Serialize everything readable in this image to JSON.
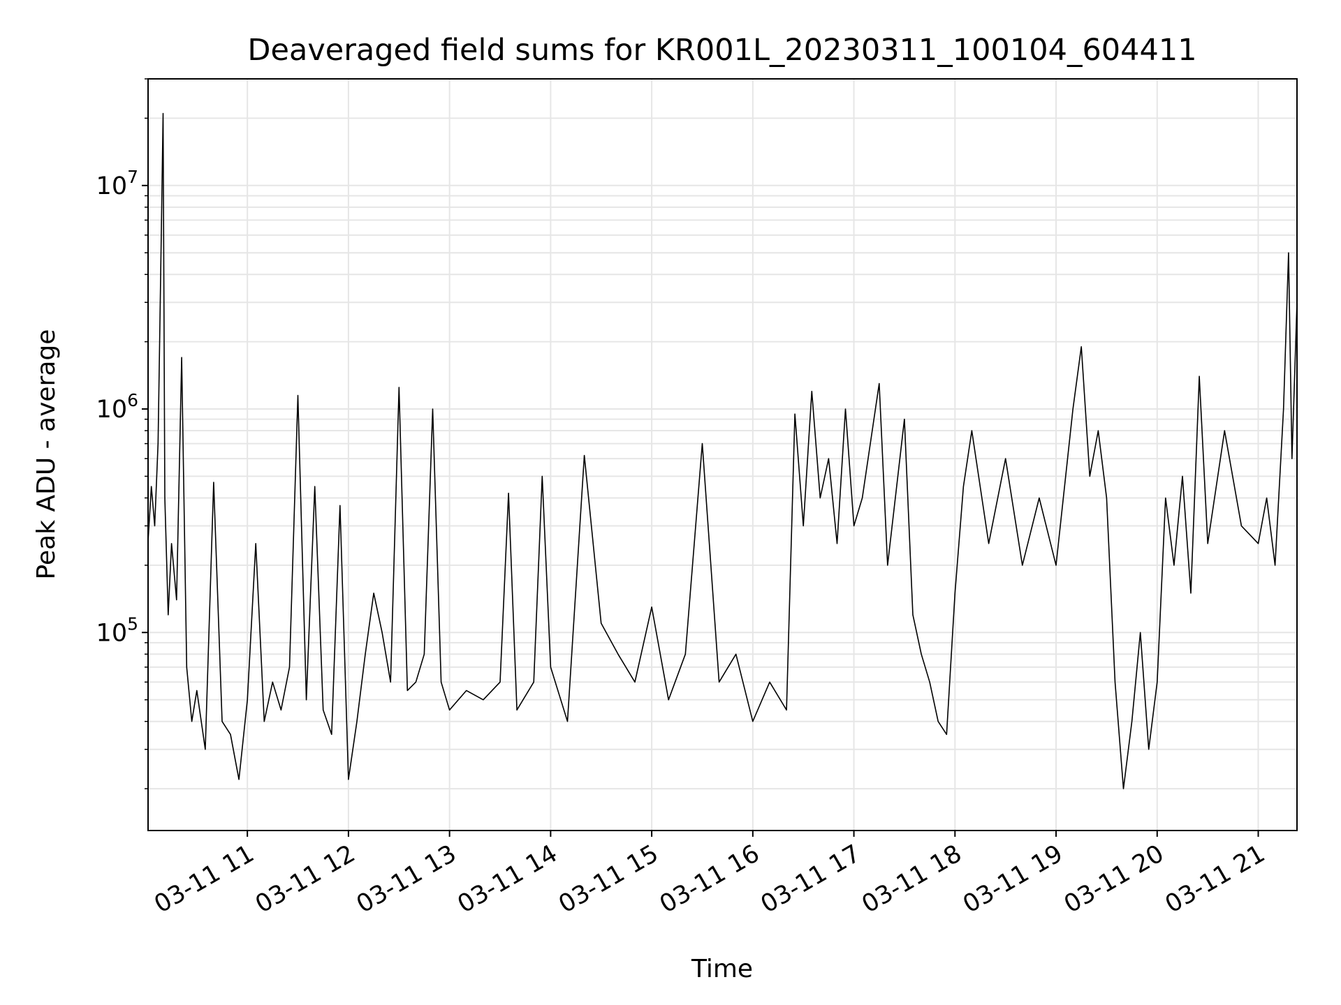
{
  "chart_data": {
    "type": "line",
    "title": "Deaveraged field sums for KR001L_20230311_100104_604411",
    "xlabel": "Time",
    "ylabel": "Peak ADU - average",
    "yscale": "log",
    "grid": {
      "major": true,
      "minor_y": true
    },
    "legend": "none",
    "line_color": "#000000",
    "grid_color": "#e6e6e6",
    "xlim": [
      "2023-03-11 10:01:04",
      "2023-03-11 21:23:00"
    ],
    "ylim": [
      13000,
      30000000
    ],
    "x_ticks": [
      {
        "value": "2023-03-11 11:00",
        "label": "03-11 11"
      },
      {
        "value": "2023-03-11 12:00",
        "label": "03-11 12"
      },
      {
        "value": "2023-03-11 13:00",
        "label": "03-11 13"
      },
      {
        "value": "2023-03-11 14:00",
        "label": "03-11 14"
      },
      {
        "value": "2023-03-11 15:00",
        "label": "03-11 15"
      },
      {
        "value": "2023-03-11 16:00",
        "label": "03-11 16"
      },
      {
        "value": "2023-03-11 17:00",
        "label": "03-11 17"
      },
      {
        "value": "2023-03-11 18:00",
        "label": "03-11 18"
      },
      {
        "value": "2023-03-11 19:00",
        "label": "03-11 19"
      },
      {
        "value": "2023-03-11 20:00",
        "label": "03-11 20"
      },
      {
        "value": "2023-03-11 21:00",
        "label": "03-11 21"
      }
    ],
    "y_ticks": [
      {
        "value": 100000,
        "base": "10",
        "exp": "5"
      },
      {
        "value": 1000000,
        "base": "10",
        "exp": "6"
      },
      {
        "value": 10000000,
        "base": "10",
        "exp": "7"
      }
    ],
    "series": [
      {
        "points": [
          [
            "2023-03-11 10:01",
            250000
          ],
          [
            "2023-03-11 10:03",
            450000
          ],
          [
            "2023-03-11 10:05",
            300000
          ],
          [
            "2023-03-11 10:07",
            700000
          ],
          [
            "2023-03-11 10:09",
            6500000
          ],
          [
            "2023-03-11 10:10",
            21000000
          ],
          [
            "2023-03-11 10:11",
            400000
          ],
          [
            "2023-03-11 10:13",
            120000
          ],
          [
            "2023-03-11 10:15",
            250000
          ],
          [
            "2023-03-11 10:18",
            140000
          ],
          [
            "2023-03-11 10:21",
            1700000
          ],
          [
            "2023-03-11 10:24",
            70000
          ],
          [
            "2023-03-11 10:27",
            40000
          ],
          [
            "2023-03-11 10:30",
            55000
          ],
          [
            "2023-03-11 10:35",
            30000
          ],
          [
            "2023-03-11 10:40",
            470000
          ],
          [
            "2023-03-11 10:45",
            40000
          ],
          [
            "2023-03-11 10:50",
            35000
          ],
          [
            "2023-03-11 10:55",
            22000
          ],
          [
            "2023-03-11 11:00",
            50000
          ],
          [
            "2023-03-11 11:05",
            250000
          ],
          [
            "2023-03-11 11:10",
            40000
          ],
          [
            "2023-03-11 11:15",
            60000
          ],
          [
            "2023-03-11 11:20",
            45000
          ],
          [
            "2023-03-11 11:25",
            70000
          ],
          [
            "2023-03-11 11:30",
            1150000
          ],
          [
            "2023-03-11 11:35",
            50000
          ],
          [
            "2023-03-11 11:40",
            450000
          ],
          [
            "2023-03-11 11:45",
            45000
          ],
          [
            "2023-03-11 11:50",
            35000
          ],
          [
            "2023-03-11 11:55",
            370000
          ],
          [
            "2023-03-11 12:00",
            22000
          ],
          [
            "2023-03-11 12:05",
            40000
          ],
          [
            "2023-03-11 12:10",
            80000
          ],
          [
            "2023-03-11 12:15",
            150000
          ],
          [
            "2023-03-11 12:20",
            100000
          ],
          [
            "2023-03-11 12:25",
            60000
          ],
          [
            "2023-03-11 12:30",
            1250000
          ],
          [
            "2023-03-11 12:35",
            55000
          ],
          [
            "2023-03-11 12:40",
            60000
          ],
          [
            "2023-03-11 12:45",
            80000
          ],
          [
            "2023-03-11 12:50",
            1000000
          ],
          [
            "2023-03-11 12:55",
            60000
          ],
          [
            "2023-03-11 13:00",
            45000
          ],
          [
            "2023-03-11 13:10",
            55000
          ],
          [
            "2023-03-11 13:20",
            50000
          ],
          [
            "2023-03-11 13:30",
            60000
          ],
          [
            "2023-03-11 13:35",
            420000
          ],
          [
            "2023-03-11 13:40",
            45000
          ],
          [
            "2023-03-11 13:50",
            60000
          ],
          [
            "2023-03-11 13:55",
            500000
          ],
          [
            "2023-03-11 14:00",
            70000
          ],
          [
            "2023-03-11 14:10",
            40000
          ],
          [
            "2023-03-11 14:20",
            620000
          ],
          [
            "2023-03-11 14:30",
            110000
          ],
          [
            "2023-03-11 14:40",
            80000
          ],
          [
            "2023-03-11 14:50",
            60000
          ],
          [
            "2023-03-11 15:00",
            130000
          ],
          [
            "2023-03-11 15:10",
            50000
          ],
          [
            "2023-03-11 15:20",
            80000
          ],
          [
            "2023-03-11 15:30",
            700000
          ],
          [
            "2023-03-11 15:40",
            60000
          ],
          [
            "2023-03-11 15:50",
            80000
          ],
          [
            "2023-03-11 16:00",
            40000
          ],
          [
            "2023-03-11 16:10",
            60000
          ],
          [
            "2023-03-11 16:20",
            45000
          ],
          [
            "2023-03-11 16:25",
            950000
          ],
          [
            "2023-03-11 16:30",
            300000
          ],
          [
            "2023-03-11 16:35",
            1200000
          ],
          [
            "2023-03-11 16:40",
            400000
          ],
          [
            "2023-03-11 16:45",
            600000
          ],
          [
            "2023-03-11 16:50",
            250000
          ],
          [
            "2023-03-11 16:55",
            1000000
          ],
          [
            "2023-03-11 17:00",
            300000
          ],
          [
            "2023-03-11 17:05",
            400000
          ],
          [
            "2023-03-11 17:15",
            1300000
          ],
          [
            "2023-03-11 17:20",
            200000
          ],
          [
            "2023-03-11 17:30",
            900000
          ],
          [
            "2023-03-11 17:35",
            120000
          ],
          [
            "2023-03-11 17:40",
            80000
          ],
          [
            "2023-03-11 17:45",
            60000
          ],
          [
            "2023-03-11 17:50",
            40000
          ],
          [
            "2023-03-11 17:55",
            35000
          ],
          [
            "2023-03-11 18:00",
            150000
          ],
          [
            "2023-03-11 18:05",
            450000
          ],
          [
            "2023-03-11 18:10",
            800000
          ],
          [
            "2023-03-11 18:20",
            250000
          ],
          [
            "2023-03-11 18:30",
            600000
          ],
          [
            "2023-03-11 18:40",
            200000
          ],
          [
            "2023-03-11 18:50",
            400000
          ],
          [
            "2023-03-11 19:00",
            200000
          ],
          [
            "2023-03-11 19:10",
            1000000
          ],
          [
            "2023-03-11 19:15",
            1900000
          ],
          [
            "2023-03-11 19:20",
            500000
          ],
          [
            "2023-03-11 19:25",
            800000
          ],
          [
            "2023-03-11 19:30",
            400000
          ],
          [
            "2023-03-11 19:35",
            60000
          ],
          [
            "2023-03-11 19:40",
            20000
          ],
          [
            "2023-03-11 19:45",
            40000
          ],
          [
            "2023-03-11 19:50",
            100000
          ],
          [
            "2023-03-11 19:55",
            30000
          ],
          [
            "2023-03-11 20:00",
            60000
          ],
          [
            "2023-03-11 20:05",
            400000
          ],
          [
            "2023-03-11 20:10",
            200000
          ],
          [
            "2023-03-11 20:15",
            500000
          ],
          [
            "2023-03-11 20:20",
            150000
          ],
          [
            "2023-03-11 20:25",
            1400000
          ],
          [
            "2023-03-11 20:30",
            250000
          ],
          [
            "2023-03-11 20:40",
            800000
          ],
          [
            "2023-03-11 20:50",
            300000
          ],
          [
            "2023-03-11 21:00",
            250000
          ],
          [
            "2023-03-11 21:05",
            400000
          ],
          [
            "2023-03-11 21:10",
            200000
          ],
          [
            "2023-03-11 21:15",
            1000000
          ],
          [
            "2023-03-11 21:18",
            5000000
          ],
          [
            "2023-03-11 21:20",
            600000
          ],
          [
            "2023-03-11 21:23",
            3000000
          ]
        ]
      }
    ]
  }
}
